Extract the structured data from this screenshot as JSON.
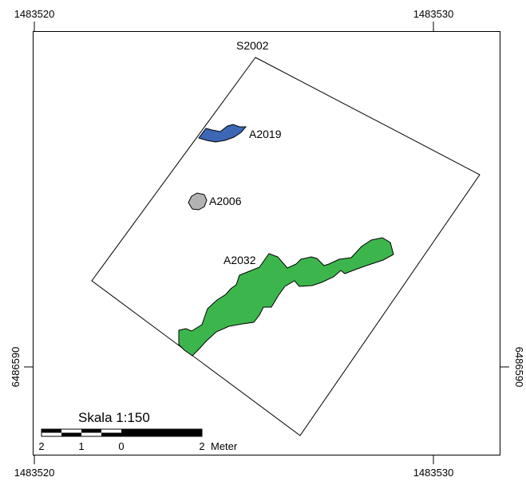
{
  "coordinates": {
    "top_left_x": "1483520",
    "top_right_x": "1483530",
    "bottom_left_x": "1483520",
    "bottom_right_x": "1483530",
    "left_y": "6486590",
    "right_y": "6486590"
  },
  "features": {
    "section": {
      "label": "S2002"
    },
    "a2019": {
      "label": "A2019",
      "fill": "#3b67b5"
    },
    "a2006": {
      "label": "A2006",
      "fill": "#b3b3b3"
    },
    "a2032": {
      "label": "A2032",
      "fill": "#3cb64c"
    }
  },
  "scalebar": {
    "title": "Skala 1:150",
    "tick_2_left": "2",
    "tick_1": "1",
    "tick_0": "0",
    "tick_2_right": "2",
    "unit": "Meter"
  }
}
